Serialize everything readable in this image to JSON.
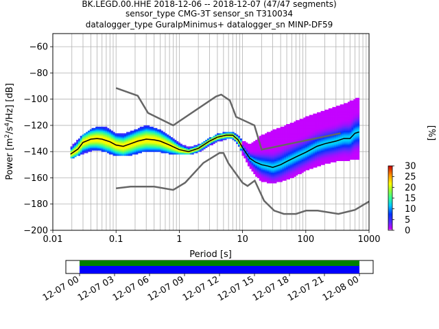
{
  "header": {
    "title_line1": "BK.LEGD.00.HHE   2018-12-06 -- 2018-12-07  (47/47 segments)",
    "title_line2": "sensor_type CMG-3T sensor_sn T310034",
    "title_line3": "datalogger_type GuralpMinimus+ datalogger_sn MINP-DF59"
  },
  "chart_data": {
    "type": "heatmap",
    "xlabel": "Period [s]",
    "ylabel": "Power [m^2/s^4/Hz] [dB]",
    "x_scale": "log",
    "xlim": [
      0.01,
      1000
    ],
    "ylim": [
      -200,
      -50
    ],
    "x_ticks": [
      "0.01",
      "0.1",
      "1",
      "10",
      "100",
      "1000"
    ],
    "y_ticks": [
      "-200",
      "-180",
      "-160",
      "-140",
      "-120",
      "-100",
      "-80",
      "-60"
    ],
    "grid": true,
    "colorbar": {
      "label": "[%]",
      "range": [
        0,
        30
      ],
      "ticks": [
        "0",
        "5",
        "10",
        "15",
        "20",
        "25",
        "30"
      ]
    },
    "noise_model_high": {
      "name": "NHNM",
      "color": "#666666",
      "x": [
        0.1,
        0.22,
        0.32,
        0.8,
        3.8,
        4.6,
        6.3,
        7.9,
        15.4,
        20,
        354.8
      ],
      "y": [
        -91.5,
        -97.4,
        -110.5,
        -120,
        -98,
        -96.5,
        -101,
        -113.5,
        -120,
        -138.5,
        -126
      ]
    },
    "noise_model_low": {
      "name": "NLNM",
      "color": "#666666",
      "x": [
        0.1,
        0.17,
        0.4,
        0.8,
        1.24,
        2.4,
        4.3,
        5,
        6,
        10,
        12,
        15.6,
        21.9,
        31.6,
        45,
        70,
        101,
        154,
        328,
        600,
        1000
      ],
      "y": [
        -168,
        -166.7,
        -166.7,
        -169.2,
        -163.7,
        -148.6,
        -141.1,
        -141.1,
        -149,
        -163.8,
        -166.2,
        -162.1,
        -177.5,
        -185,
        -187.5,
        -187.5,
        -185,
        -185,
        -187.5,
        -184.4,
        -178
      ]
    },
    "mean_curve": {
      "color": "#000000",
      "x": [
        0.019,
        0.025,
        0.03,
        0.04,
        0.05,
        0.06,
        0.08,
        0.1,
        0.13,
        0.17,
        0.22,
        0.3,
        0.4,
        0.5,
        0.7,
        1.0,
        1.4,
        2.0,
        3.0,
        4.0,
        5.5,
        7.0,
        8.5,
        10,
        13,
        16,
        20,
        25,
        30,
        40,
        50,
        70,
        100,
        150,
        200,
        300,
        400,
        500,
        600,
        700
      ],
      "y": [
        -142,
        -138,
        -133,
        -130.5,
        -130,
        -130.5,
        -132.5,
        -135,
        -136,
        -134,
        -132,
        -130.5,
        -131,
        -132,
        -135,
        -138.5,
        -140,
        -137.5,
        -132,
        -129,
        -127.5,
        -127.5,
        -131,
        -137,
        -145,
        -148,
        -150,
        -151,
        -152,
        -150,
        -147.5,
        -144,
        -140.5,
        -136,
        -134,
        -132,
        -130,
        -130,
        -126,
        -125
      ]
    },
    "bands": [
      {
        "x": [
          0.019,
          0.03,
          0.05,
          0.07,
          0.1,
          0.15,
          0.22,
          0.3,
          0.4,
          0.5,
          0.7,
          1.0,
          1.4,
          2.0,
          3.0,
          4.0,
          5.5,
          7.0,
          8.5,
          10,
          13,
          16,
          20,
          30,
          50,
          70,
          100,
          150,
          200,
          300,
          400,
          500,
          600,
          700
        ],
        "y_low": [
          -145,
          -141,
          -138,
          -140,
          -143,
          -143,
          -141,
          -139,
          -140,
          -140,
          -141,
          -142,
          -142,
          -140,
          -135,
          -132,
          -130,
          -130,
          -134,
          -142,
          -152,
          -158,
          -162,
          -164,
          -161,
          -158,
          -154,
          -151,
          -149,
          -147,
          -147,
          -146,
          -146,
          -146
        ],
        "y_high": [
          -137,
          -127,
          -121,
          -122,
          -127,
          -126,
          -123,
          -120,
          -122,
          -124,
          -128,
          -134,
          -137,
          -135,
          -130,
          -127,
          -125,
          -125,
          -128,
          -132,
          -135,
          -132,
          -128,
          -124,
          -120,
          -117,
          -114,
          -111,
          -109,
          -106,
          -104,
          -102,
          -100,
          -99
        ]
      }
    ]
  },
  "timeline": {
    "ticks": [
      "12-07 00",
      "12-07 03",
      "12-07 06",
      "12-07 09",
      "12-07 12",
      "12-07 15",
      "12-07 18",
      "12-07 21",
      "12-08 00"
    ]
  }
}
